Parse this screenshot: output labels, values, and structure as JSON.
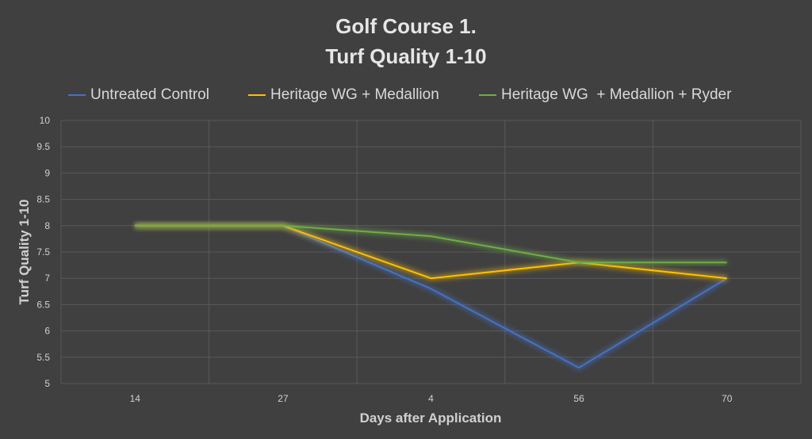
{
  "chart_data": {
    "type": "line",
    "title": [
      "Golf Course 1.",
      "Turf Quality 1-10"
    ],
    "xlabel": "Days after Application",
    "ylabel": "Turf Quality 1-10",
    "categories": [
      "14",
      "27",
      "4",
      "56",
      "70"
    ],
    "ylim": [
      5,
      10
    ],
    "yticks": [
      "5",
      "5.5",
      "6",
      "6.5",
      "7",
      "7.5",
      "8",
      "8.5",
      "9",
      "9.5",
      "10"
    ],
    "grid": true,
    "legend_position": "top",
    "series": [
      {
        "name": "Untreated Control",
        "color": "#4472c4",
        "values": [
          8,
          8,
          6.8,
          5.3,
          7
        ]
      },
      {
        "name": "Heritage WG + Medallion",
        "color": "#ffc000",
        "values": [
          8,
          8,
          7,
          7.3,
          7
        ]
      },
      {
        "name": "Heritage WG  + Medallion + Ryder",
        "color": "#70ad47",
        "values": [
          8,
          8,
          7.8,
          7.3,
          7.3
        ]
      }
    ]
  }
}
